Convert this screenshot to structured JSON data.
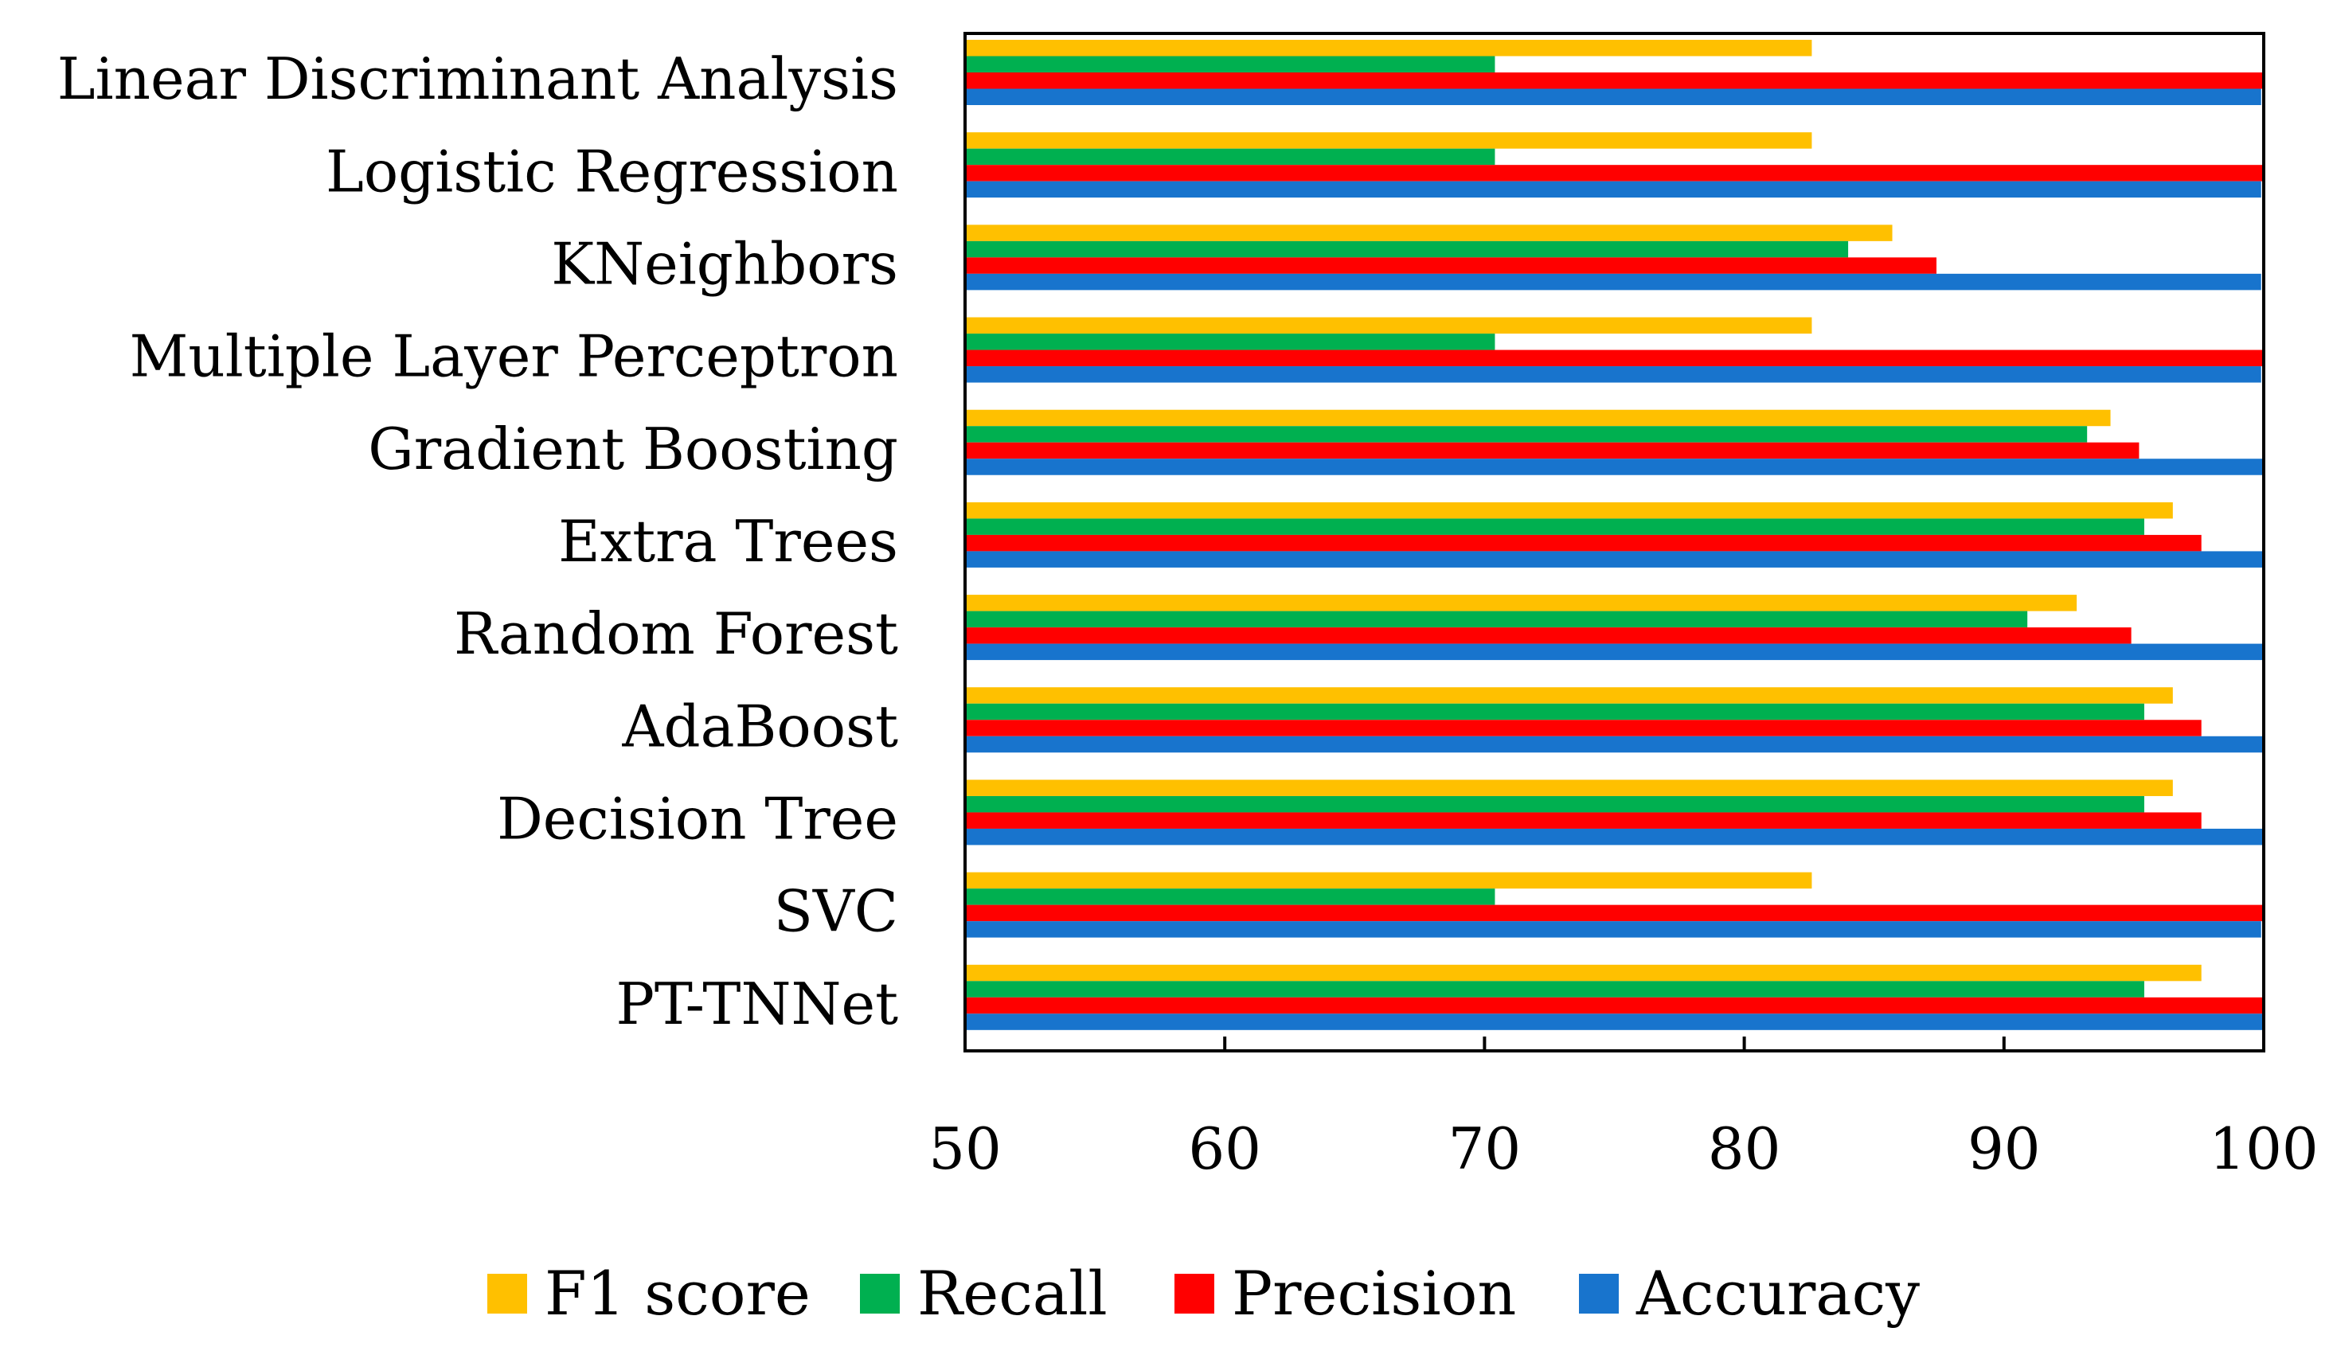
{
  "chart_data": {
    "type": "bar",
    "orientation": "horizontal",
    "categories": [
      "Linear Discriminant Analysis",
      "Logistic Regression",
      "KNeighbors",
      "Multiple Layer Perceptron",
      "Gradient Boosting",
      "Extra Trees",
      "Random Forest",
      "AdaBoost",
      "Decision Tree",
      "SVC",
      "PT-TNNet"
    ],
    "series": [
      {
        "name": "F1 score",
        "color": "#FFC000",
        "values": [
          82.6,
          82.6,
          85.7,
          82.6,
          94.1,
          96.5,
          92.8,
          96.5,
          96.5,
          82.6,
          97.6
        ]
      },
      {
        "name": "Recall",
        "color": "#00B050",
        "values": [
          70.4,
          70.4,
          84.0,
          70.4,
          93.2,
          95.4,
          90.9,
          95.4,
          95.4,
          70.4,
          95.4
        ]
      },
      {
        "name": "Precision",
        "color": "#FF0000",
        "values": [
          100,
          100,
          87.4,
          100,
          95.2,
          97.6,
          94.9,
          97.6,
          97.6,
          100,
          100
        ]
      },
      {
        "name": "Accuracy",
        "color": "#1874CD",
        "values": [
          99.9,
          99.9,
          99.9,
          99.9,
          100,
          100,
          100,
          100,
          100,
          99.9,
          100
        ]
      }
    ],
    "xlim": [
      50,
      100
    ],
    "xticks": [
      "50",
      "60",
      "70",
      "80",
      "90",
      "100"
    ],
    "legend_position": "bottom",
    "grid": false
  }
}
